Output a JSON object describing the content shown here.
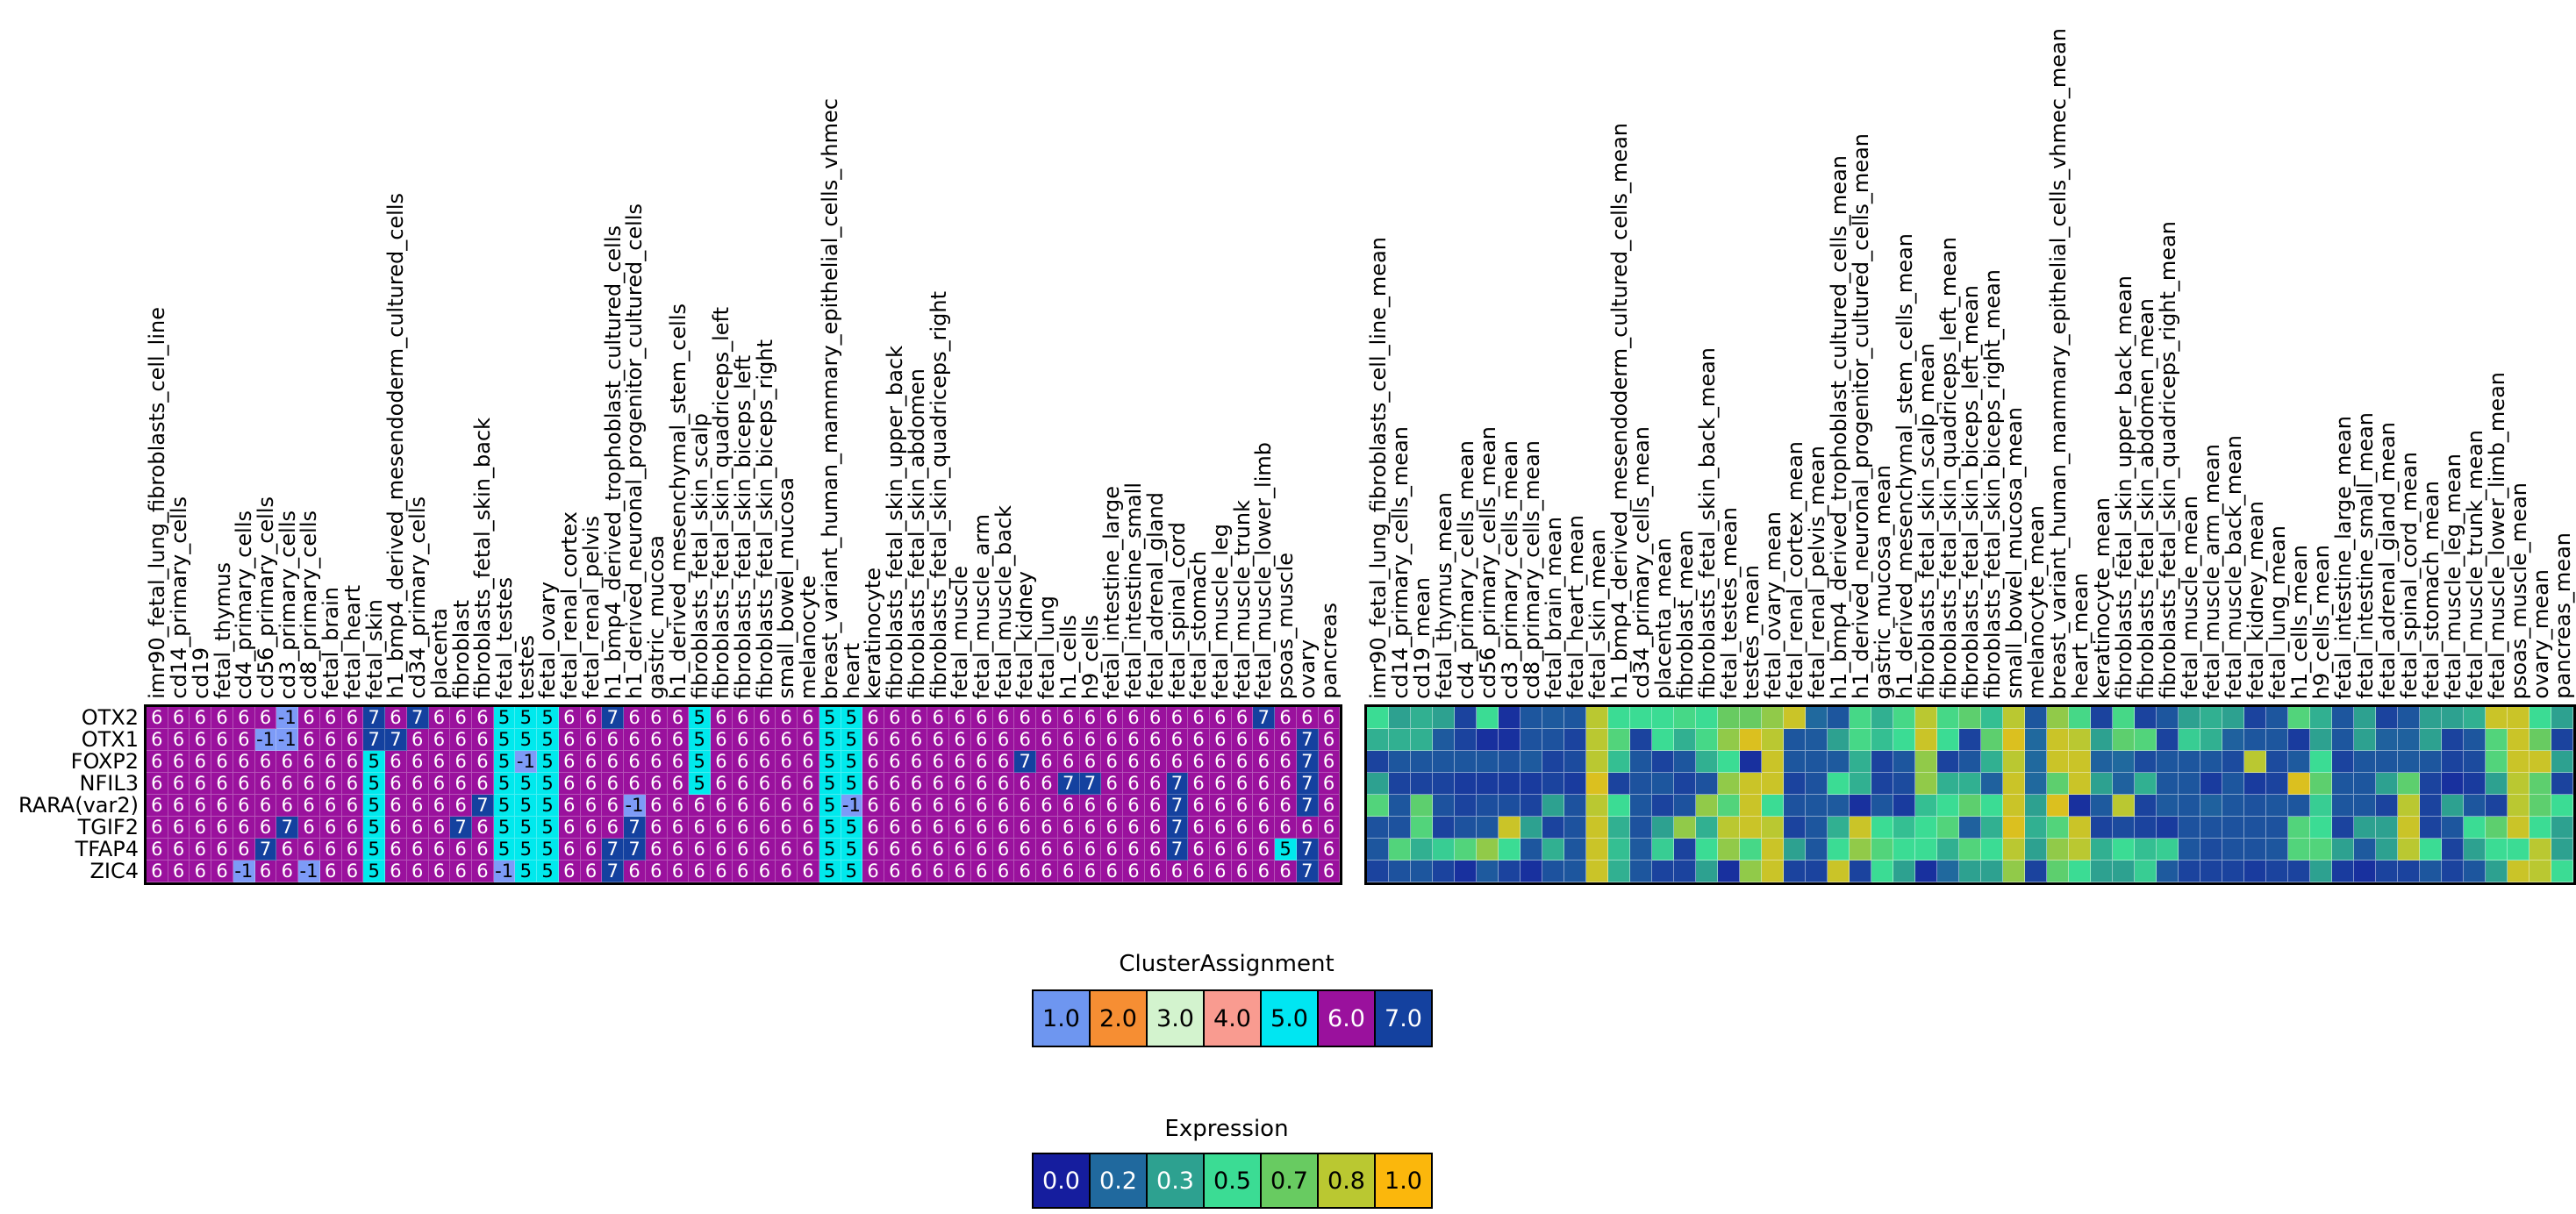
{
  "figure": {
    "type": "dual-heatmap",
    "background": "#ffffff"
  },
  "row_labels": [
    "OTX2",
    "OTX1",
    "FOXP2",
    "NFIL3",
    "RARA(var2)",
    "TGIF2",
    "TFAP4",
    "ZIC4"
  ],
  "left_columns": [
    "imr90_fetal_lung_fibroblasts_cell_line",
    "cd14_primary_cells",
    "cd19",
    "fetal_thymus",
    "cd4_primary_cells",
    "cd56_primary_cells",
    "cd3_primary_cells",
    "cd8_primary_cells",
    "fetal_brain",
    "fetal_heart",
    "fetal_skin",
    "h1_bmp4_derived_mesendoderm_cultured_cells",
    "cd34_primary_cells",
    "placenta",
    "fibroblast",
    "fibroblasts_fetal_skin_back",
    "fetal_testes",
    "testes",
    "fetal_ovary",
    "fetal_renal_cortex",
    "fetal_renal_pelvis",
    "h1_bmp4_derived_trophoblast_cultured_cells",
    "h1_derived_neuronal_progenitor_cultured_cells",
    "gastric_mucosa",
    "h1_derived_mesenchymal_stem_cells",
    "fibroblasts_fetal_skin_scalp",
    "fibroblasts_fetal_skin_quadriceps_left",
    "fibroblasts_fetal_skin_biceps_left",
    "fibroblasts_fetal_skin_biceps_right",
    "small_bowel_mucosa",
    "melanocyte",
    "breast_variant_human_mammary_epithelial_cells_vhmec",
    "heart",
    "keratinocyte",
    "fibroblasts_fetal_skin_upper_back",
    "fibroblasts_fetal_skin_abdomen",
    "fibroblasts_fetal_skin_quadriceps_right",
    "fetal_muscle",
    "fetal_muscle_arm",
    "fetal_muscle_back",
    "fetal_kidney",
    "fetal_lung",
    "h1_cells",
    "h9_cells",
    "fetal_intestine_large",
    "fetal_intestine_small",
    "fetal_adrenal_gland",
    "fetal_spinal_cord",
    "fetal_stomach",
    "fetal_muscle_leg",
    "fetal_muscle_trunk",
    "fetal_muscle_lower_limb",
    "psoas_muscle",
    "ovary",
    "pancreas"
  ],
  "right_columns": [
    "imr90_fetal_lung_fibroblasts_cell_line_mean",
    "cd14_primary_cells_mean",
    "cd19_mean",
    "fetal_thymus_mean",
    "cd4_primary_cells_mean",
    "cd56_primary_cells_mean",
    "cd3_primary_cells_mean",
    "cd8_primary_cells_mean",
    "fetal_brain_mean",
    "fetal_heart_mean",
    "fetal_skin_mean",
    "h1_bmp4_derived_mesendoderm_cultured_cells_mean",
    "cd34_primary_cells_mean",
    "placenta_mean",
    "fibroblast_mean",
    "fibroblasts_fetal_skin_back_mean",
    "fetal_testes_mean",
    "testes_mean",
    "fetal_ovary_mean",
    "fetal_renal_cortex_mean",
    "fetal_renal_pelvis_mean",
    "h1_bmp4_derived_trophoblast_cultured_cells_mean",
    "h1_derived_neuronal_progenitor_cultured_cells_mean",
    "gastric_mucosa_mean",
    "h1_derived_mesenchymal_stem_cells_mean",
    "fibroblasts_fetal_skin_scalp_mean",
    "fibroblasts_fetal_skin_quadriceps_left_mean",
    "fibroblasts_fetal_skin_biceps_left_mean",
    "fibroblasts_fetal_skin_biceps_right_mean",
    "small_bowel_mucosa_mean",
    "melanocyte_mean",
    "breast_variant_human_mammary_epithelial_cells_vhmec_mean",
    "heart_mean",
    "keratinocyte_mean",
    "fibroblasts_fetal_skin_upper_back_mean",
    "fibroblasts_fetal_skin_abdomen_mean",
    "fibroblasts_fetal_skin_quadriceps_right_mean",
    "fetal_muscle_mean",
    "fetal_muscle_arm_mean",
    "fetal_muscle_back_mean",
    "fetal_kidney_mean",
    "fetal_lung_mean",
    "h1_cells_mean",
    "h9_cells_mean",
    "fetal_intestine_large_mean",
    "fetal_intestine_small_mean",
    "fetal_adrenal_gland_mean",
    "fetal_spinal_cord_mean",
    "fetal_stomach_mean",
    "fetal_muscle_leg_mean",
    "fetal_muscle_trunk_mean",
    "fetal_muscle_lower_limb_mean",
    "psoas_muscle_mean",
    "ovary_mean",
    "pancreas_mean"
  ],
  "chart_data": [
    {
      "type": "heatmap",
      "title": "ClusterAssignment",
      "rows": [
        "OTX2",
        "OTX1",
        "FOXP2",
        "NFIL3",
        "RARA(var2)",
        "TGIF2",
        "TFAP4",
        "ZIC4"
      ],
      "values": [
        [
          6,
          6,
          6,
          6,
          6,
          6,
          -1,
          6,
          6,
          6,
          7,
          6,
          7,
          6,
          6,
          6,
          5,
          5,
          5,
          6,
          6,
          7,
          6,
          6,
          6,
          5,
          6,
          6,
          6,
          6,
          6,
          5,
          5,
          6,
          6,
          6,
          6,
          6,
          6,
          6,
          6,
          6,
          6,
          6,
          6,
          6,
          6,
          6,
          6,
          6,
          6,
          7,
          6,
          6,
          6
        ],
        [
          6,
          6,
          6,
          6,
          6,
          -1,
          -1,
          6,
          6,
          6,
          7,
          7,
          6,
          6,
          6,
          6,
          5,
          5,
          5,
          6,
          6,
          6,
          6,
          6,
          6,
          5,
          6,
          6,
          6,
          6,
          6,
          5,
          5,
          6,
          6,
          6,
          6,
          6,
          6,
          6,
          6,
          6,
          6,
          6,
          6,
          6,
          6,
          6,
          6,
          6,
          6,
          6,
          6,
          7,
          6
        ],
        [
          6,
          6,
          6,
          6,
          6,
          6,
          6,
          6,
          6,
          6,
          5,
          6,
          6,
          6,
          6,
          6,
          5,
          -1,
          5,
          6,
          6,
          6,
          6,
          6,
          6,
          5,
          6,
          6,
          6,
          6,
          6,
          5,
          5,
          6,
          6,
          6,
          6,
          6,
          6,
          6,
          7,
          6,
          6,
          6,
          6,
          6,
          6,
          6,
          6,
          6,
          6,
          6,
          6,
          7,
          6
        ],
        [
          6,
          6,
          6,
          6,
          6,
          6,
          6,
          6,
          6,
          6,
          5,
          6,
          6,
          6,
          6,
          6,
          5,
          5,
          5,
          6,
          6,
          6,
          6,
          6,
          6,
          5,
          6,
          6,
          6,
          6,
          6,
          5,
          5,
          6,
          6,
          6,
          6,
          6,
          6,
          6,
          6,
          6,
          7,
          7,
          6,
          6,
          6,
          7,
          6,
          6,
          6,
          6,
          6,
          7,
          6
        ],
        [
          6,
          6,
          6,
          6,
          6,
          6,
          6,
          6,
          6,
          6,
          5,
          6,
          6,
          6,
          6,
          7,
          5,
          5,
          5,
          6,
          6,
          6,
          -1,
          6,
          6,
          6,
          6,
          6,
          6,
          6,
          6,
          5,
          -1,
          6,
          6,
          6,
          6,
          6,
          6,
          6,
          6,
          6,
          6,
          6,
          6,
          6,
          6,
          7,
          6,
          6,
          6,
          6,
          6,
          7,
          6
        ],
        [
          6,
          6,
          6,
          6,
          6,
          6,
          7,
          6,
          6,
          6,
          5,
          6,
          6,
          6,
          7,
          6,
          5,
          5,
          5,
          6,
          6,
          6,
          7,
          6,
          6,
          6,
          6,
          6,
          6,
          6,
          6,
          5,
          5,
          6,
          6,
          6,
          6,
          6,
          6,
          6,
          6,
          6,
          6,
          6,
          6,
          6,
          6,
          7,
          6,
          6,
          6,
          6,
          6,
          6,
          6
        ],
        [
          6,
          6,
          6,
          6,
          6,
          7,
          6,
          6,
          6,
          6,
          5,
          6,
          6,
          6,
          6,
          6,
          5,
          5,
          5,
          6,
          6,
          7,
          7,
          6,
          6,
          6,
          6,
          6,
          6,
          6,
          6,
          5,
          5,
          6,
          6,
          6,
          6,
          6,
          6,
          6,
          6,
          6,
          6,
          6,
          6,
          6,
          6,
          7,
          6,
          6,
          6,
          6,
          5,
          7,
          6
        ],
        [
          6,
          6,
          6,
          6,
          -1,
          6,
          6,
          -1,
          6,
          6,
          5,
          6,
          6,
          6,
          6,
          6,
          -1,
          5,
          5,
          6,
          6,
          7,
          6,
          6,
          6,
          6,
          6,
          6,
          6,
          6,
          6,
          5,
          5,
          6,
          6,
          6,
          6,
          6,
          6,
          6,
          6,
          6,
          6,
          6,
          6,
          6,
          6,
          6,
          6,
          6,
          6,
          6,
          6,
          7,
          6
        ]
      ]
    },
    {
      "type": "heatmap",
      "title": "Expression",
      "rows": [
        "OTX2",
        "OTX1",
        "FOXP2",
        "NFIL3",
        "RARA(var2)",
        "TGIF2",
        "TFAP4",
        "ZIC4"
      ],
      "value_range": [
        0,
        1
      ],
      "values": [
        [
          0.5,
          0.3,
          0.35,
          0.3,
          0.1,
          0.5,
          0.05,
          0.15,
          0.16,
          0.15,
          0.8,
          0.5,
          0.5,
          0.5,
          0.55,
          0.5,
          0.7,
          0.7,
          0.75,
          0.85,
          0.2,
          0.15,
          0.55,
          0.35,
          0.55,
          0.8,
          0.55,
          0.65,
          0.4,
          0.8,
          0.15,
          0.75,
          0.55,
          0.1,
          0.55,
          0.1,
          0.15,
          0.3,
          0.35,
          0.3,
          0.1,
          0.15,
          0.6,
          0.35,
          0.15,
          0.3,
          0.1,
          0.15,
          0.3,
          0.3,
          0.35,
          0.85,
          0.85,
          0.5,
          0.3
        ],
        [
          0.35,
          0.35,
          0.35,
          0.16,
          0.1,
          0.05,
          0.05,
          0.14,
          0.14,
          0.1,
          0.8,
          0.6,
          0.1,
          0.5,
          0.35,
          0.55,
          0.75,
          0.9,
          0.8,
          0.15,
          0.16,
          0.3,
          0.55,
          0.4,
          0.5,
          0.85,
          0.5,
          0.1,
          0.65,
          0.9,
          0.2,
          0.85,
          0.8,
          0.3,
          0.65,
          0.6,
          0.1,
          0.45,
          0.35,
          0.18,
          0.15,
          0.15,
          0.08,
          0.3,
          0.15,
          0.3,
          0.18,
          0.18,
          0.3,
          0.1,
          0.15,
          0.6,
          0.85,
          0.7,
          0.1
        ],
        [
          0.1,
          0.15,
          0.15,
          0.15,
          0.15,
          0.15,
          0.14,
          0.16,
          0.1,
          0.12,
          0.8,
          0.4,
          0.15,
          0.1,
          0.15,
          0.35,
          0.5,
          0.05,
          0.85,
          0.15,
          0.15,
          0.16,
          0.35,
          0.1,
          0.15,
          0.75,
          0.1,
          0.15,
          0.35,
          0.8,
          0.2,
          0.85,
          0.85,
          0.18,
          0.2,
          0.12,
          0.15,
          0.15,
          0.15,
          0.12,
          0.8,
          0.12,
          0.16,
          0.5,
          0.1,
          0.15,
          0.15,
          0.16,
          0.15,
          0.1,
          0.12,
          0.6,
          0.85,
          0.85,
          0.3
        ],
        [
          0.3,
          0.1,
          0.1,
          0.1,
          0.08,
          0.08,
          0.08,
          0.08,
          0.1,
          0.08,
          0.9,
          0.1,
          0.14,
          0.15,
          0.1,
          0.14,
          0.75,
          0.85,
          0.85,
          0.1,
          0.14,
          0.5,
          0.35,
          0.1,
          0.12,
          0.75,
          0.35,
          0.35,
          0.18,
          0.85,
          0.2,
          0.65,
          0.85,
          0.3,
          0.18,
          0.35,
          0.15,
          0.15,
          0.08,
          0.15,
          0.08,
          0.1,
          0.9,
          0.65,
          0.15,
          0.15,
          0.3,
          0.65,
          0.1,
          0.05,
          0.08,
          0.3,
          0.8,
          0.65,
          0.1
        ],
        [
          0.6,
          0.15,
          0.65,
          0.14,
          0.1,
          0.13,
          0.13,
          0.1,
          0.3,
          0.14,
          0.8,
          0.5,
          0.15,
          0.1,
          0.14,
          0.75,
          0.6,
          0.85,
          0.5,
          0.14,
          0.15,
          0.16,
          0.05,
          0.15,
          0.08,
          0.4,
          0.5,
          0.65,
          0.5,
          0.85,
          0.3,
          0.9,
          0.05,
          0.16,
          0.8,
          0.1,
          0.16,
          0.15,
          0.18,
          0.15,
          0.14,
          0.15,
          0.15,
          0.45,
          0.15,
          0.15,
          0.1,
          0.8,
          0.1,
          0.3,
          0.15,
          0.1,
          0.8,
          0.65,
          0.5
        ],
        [
          0.14,
          0.14,
          0.6,
          0.1,
          0.14,
          0.15,
          0.85,
          0.3,
          0.1,
          0.14,
          0.85,
          0.35,
          0.14,
          0.3,
          0.75,
          0.35,
          0.8,
          0.85,
          0.8,
          0.1,
          0.15,
          0.35,
          0.85,
          0.5,
          0.4,
          0.5,
          0.6,
          0.18,
          0.35,
          0.9,
          0.35,
          0.6,
          0.85,
          0.1,
          0.12,
          0.1,
          0.08,
          0.14,
          0.14,
          0.14,
          0.14,
          0.14,
          0.6,
          0.5,
          0.1,
          0.3,
          0.3,
          0.85,
          0.1,
          0.15,
          0.5,
          0.65,
          0.85,
          0.5,
          0.3
        ],
        [
          0.15,
          0.6,
          0.35,
          0.45,
          0.6,
          0.75,
          0.5,
          0.15,
          0.35,
          0.15,
          0.85,
          0.4,
          0.16,
          0.45,
          0.1,
          0.5,
          0.75,
          0.55,
          0.85,
          0.3,
          0.15,
          0.5,
          0.75,
          0.6,
          0.5,
          0.5,
          0.35,
          0.6,
          0.5,
          0.8,
          0.3,
          0.75,
          0.8,
          0.35,
          0.5,
          0.4,
          0.45,
          0.15,
          0.12,
          0.14,
          0.14,
          0.15,
          0.6,
          0.6,
          0.3,
          0.16,
          0.3,
          0.8,
          0.5,
          0.1,
          0.3,
          0.5,
          0.5,
          0.8,
          0.3
        ],
        [
          0.1,
          0.14,
          0.15,
          0.1,
          0.05,
          0.16,
          0.1,
          0.05,
          0.14,
          0.15,
          0.85,
          0.35,
          0.15,
          0.1,
          0.1,
          0.3,
          0.05,
          0.75,
          0.85,
          0.1,
          0.1,
          0.85,
          0.1,
          0.5,
          0.3,
          0.05,
          0.2,
          0.3,
          0.3,
          0.75,
          0.1,
          0.65,
          0.5,
          0.3,
          0.3,
          0.45,
          0.16,
          0.1,
          0.1,
          0.1,
          0.08,
          0.1,
          0.1,
          0.3,
          0.08,
          0.05,
          0.1,
          0.1,
          0.15,
          0.1,
          0.15,
          0.3,
          0.85,
          0.8,
          0.5
        ]
      ]
    }
  ],
  "cluster_colors": {
    "-1": "#7D9BF7",
    "5": "#00E9ED",
    "6": "#9A119D",
    "7": "#14419F"
  },
  "cluster_text_colors": {
    "-1": "#000000",
    "5": "#000000",
    "6": "#ffffff",
    "7": "#ffffff"
  },
  "expression_colormap": {
    "stops": [
      0,
      0.2,
      0.3,
      0.5,
      0.7,
      0.8,
      1.0
    ],
    "colors": [
      "#151D9E",
      "#20699E",
      "#2DA190",
      "#3BDC94",
      "#68CB61",
      "#BAC831",
      "#FBB70C"
    ]
  },
  "legends": [
    {
      "title": "ClusterAssignment",
      "entries": [
        {
          "label": "1.0",
          "color": "#6E96F0",
          "text_color": "#000000"
        },
        {
          "label": "2.0",
          "color": "#F68E33",
          "text_color": "#000000"
        },
        {
          "label": "3.0",
          "color": "#D3F3CE",
          "text_color": "#000000"
        },
        {
          "label": "4.0",
          "color": "#F99B90",
          "text_color": "#000000"
        },
        {
          "label": "5.0",
          "color": "#00E6F2",
          "text_color": "#000000"
        },
        {
          "label": "6.0",
          "color": "#9A119D",
          "text_color": "#ffffff"
        },
        {
          "label": "7.0",
          "color": "#14419F",
          "text_color": "#ffffff"
        }
      ]
    },
    {
      "title": "Expression",
      "entries": [
        {
          "label": "0.0",
          "color": "#151D9E",
          "text_color": "#ffffff"
        },
        {
          "label": "0.2",
          "color": "#20699E",
          "text_color": "#ffffff"
        },
        {
          "label": "0.3",
          "color": "#2DA190",
          "text_color": "#ffffff"
        },
        {
          "label": "0.5",
          "color": "#3BDC94",
          "text_color": "#000000"
        },
        {
          "label": "0.7",
          "color": "#68CB61",
          "text_color": "#000000"
        },
        {
          "label": "0.8",
          "color": "#BAC831",
          "text_color": "#000000"
        },
        {
          "label": "1.0",
          "color": "#FBB70C",
          "text_color": "#000000"
        }
      ]
    }
  ]
}
